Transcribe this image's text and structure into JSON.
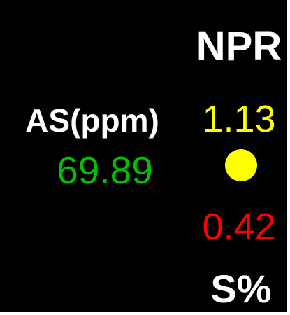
{
  "panel": {
    "right_header": "NPR",
    "left_header": "AS(ppm)",
    "upper_value": "1.13",
    "left_value": "69.89",
    "lower_value": "0.42",
    "right_footer": "S%"
  }
}
